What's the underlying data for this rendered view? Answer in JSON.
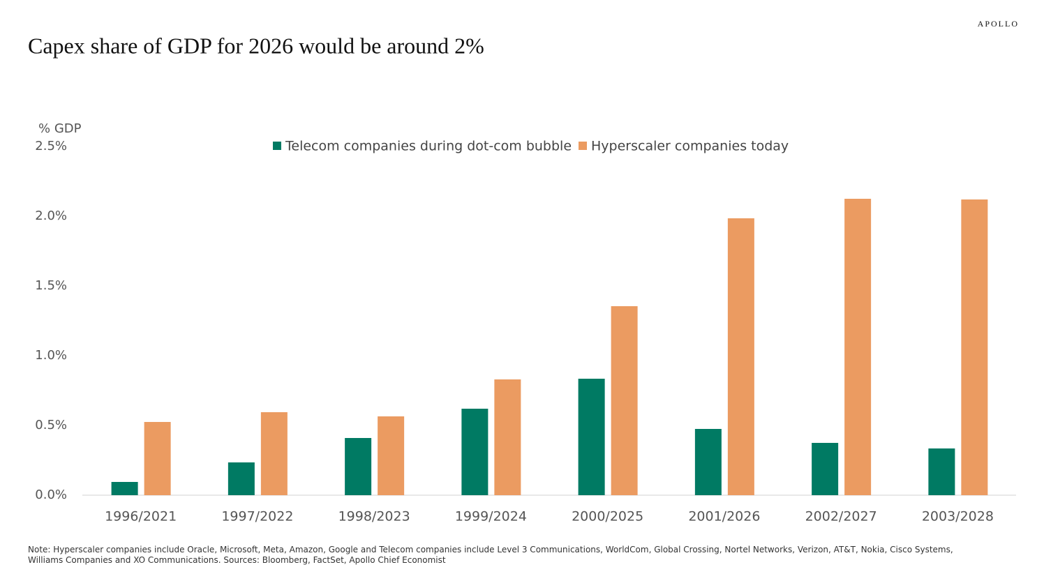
{
  "brand": "APOLLO",
  "chart_data": {
    "type": "bar",
    "title": "Capex share of GDP for 2026 would be around 2%",
    "y_label": "% GDP",
    "categories": [
      "1996/2021",
      "1997/2022",
      "1998/2023",
      "1999/2024",
      "2000/2025",
      "2001/2026",
      "2002/2027",
      "2003/2028"
    ],
    "series": [
      {
        "name": "Telecom companies during dot-com bubble",
        "color": "#007a63",
        "values": [
          0.095,
          0.235,
          0.41,
          0.62,
          0.835,
          0.475,
          0.375,
          0.335
        ]
      },
      {
        "name": "Hyperscaler companies today",
        "color": "#eb9b61",
        "values": [
          0.525,
          0.595,
          0.565,
          0.83,
          1.355,
          1.985,
          2.125,
          2.12
        ]
      }
    ],
    "ylim": [
      0,
      2.5
    ],
    "yticks": [
      {
        "value": 0,
        "label": "0.0%"
      },
      {
        "value": 0.5,
        "label": "0.5%"
      },
      {
        "value": 1,
        "label": "1.0%"
      },
      {
        "value": 1.5,
        "label": "1.5%"
      },
      {
        "value": 2,
        "label": "2.0%"
      },
      {
        "value": 2.5,
        "label": "2.5%"
      }
    ],
    "legend_position": "top",
    "note": "Note: Hyperscaler companies include Oracle, Microsoft, Meta, Amazon, Google and Telecom companies include  Level 3 Communications, WorldCom, Global Crossing, Nortel Networks, Verizon, AT&T, Nokia, Cisco Systems, Williams Companies and XO Communications. Sources: Bloomberg, FactSet, Apollo Chief Economist"
  }
}
